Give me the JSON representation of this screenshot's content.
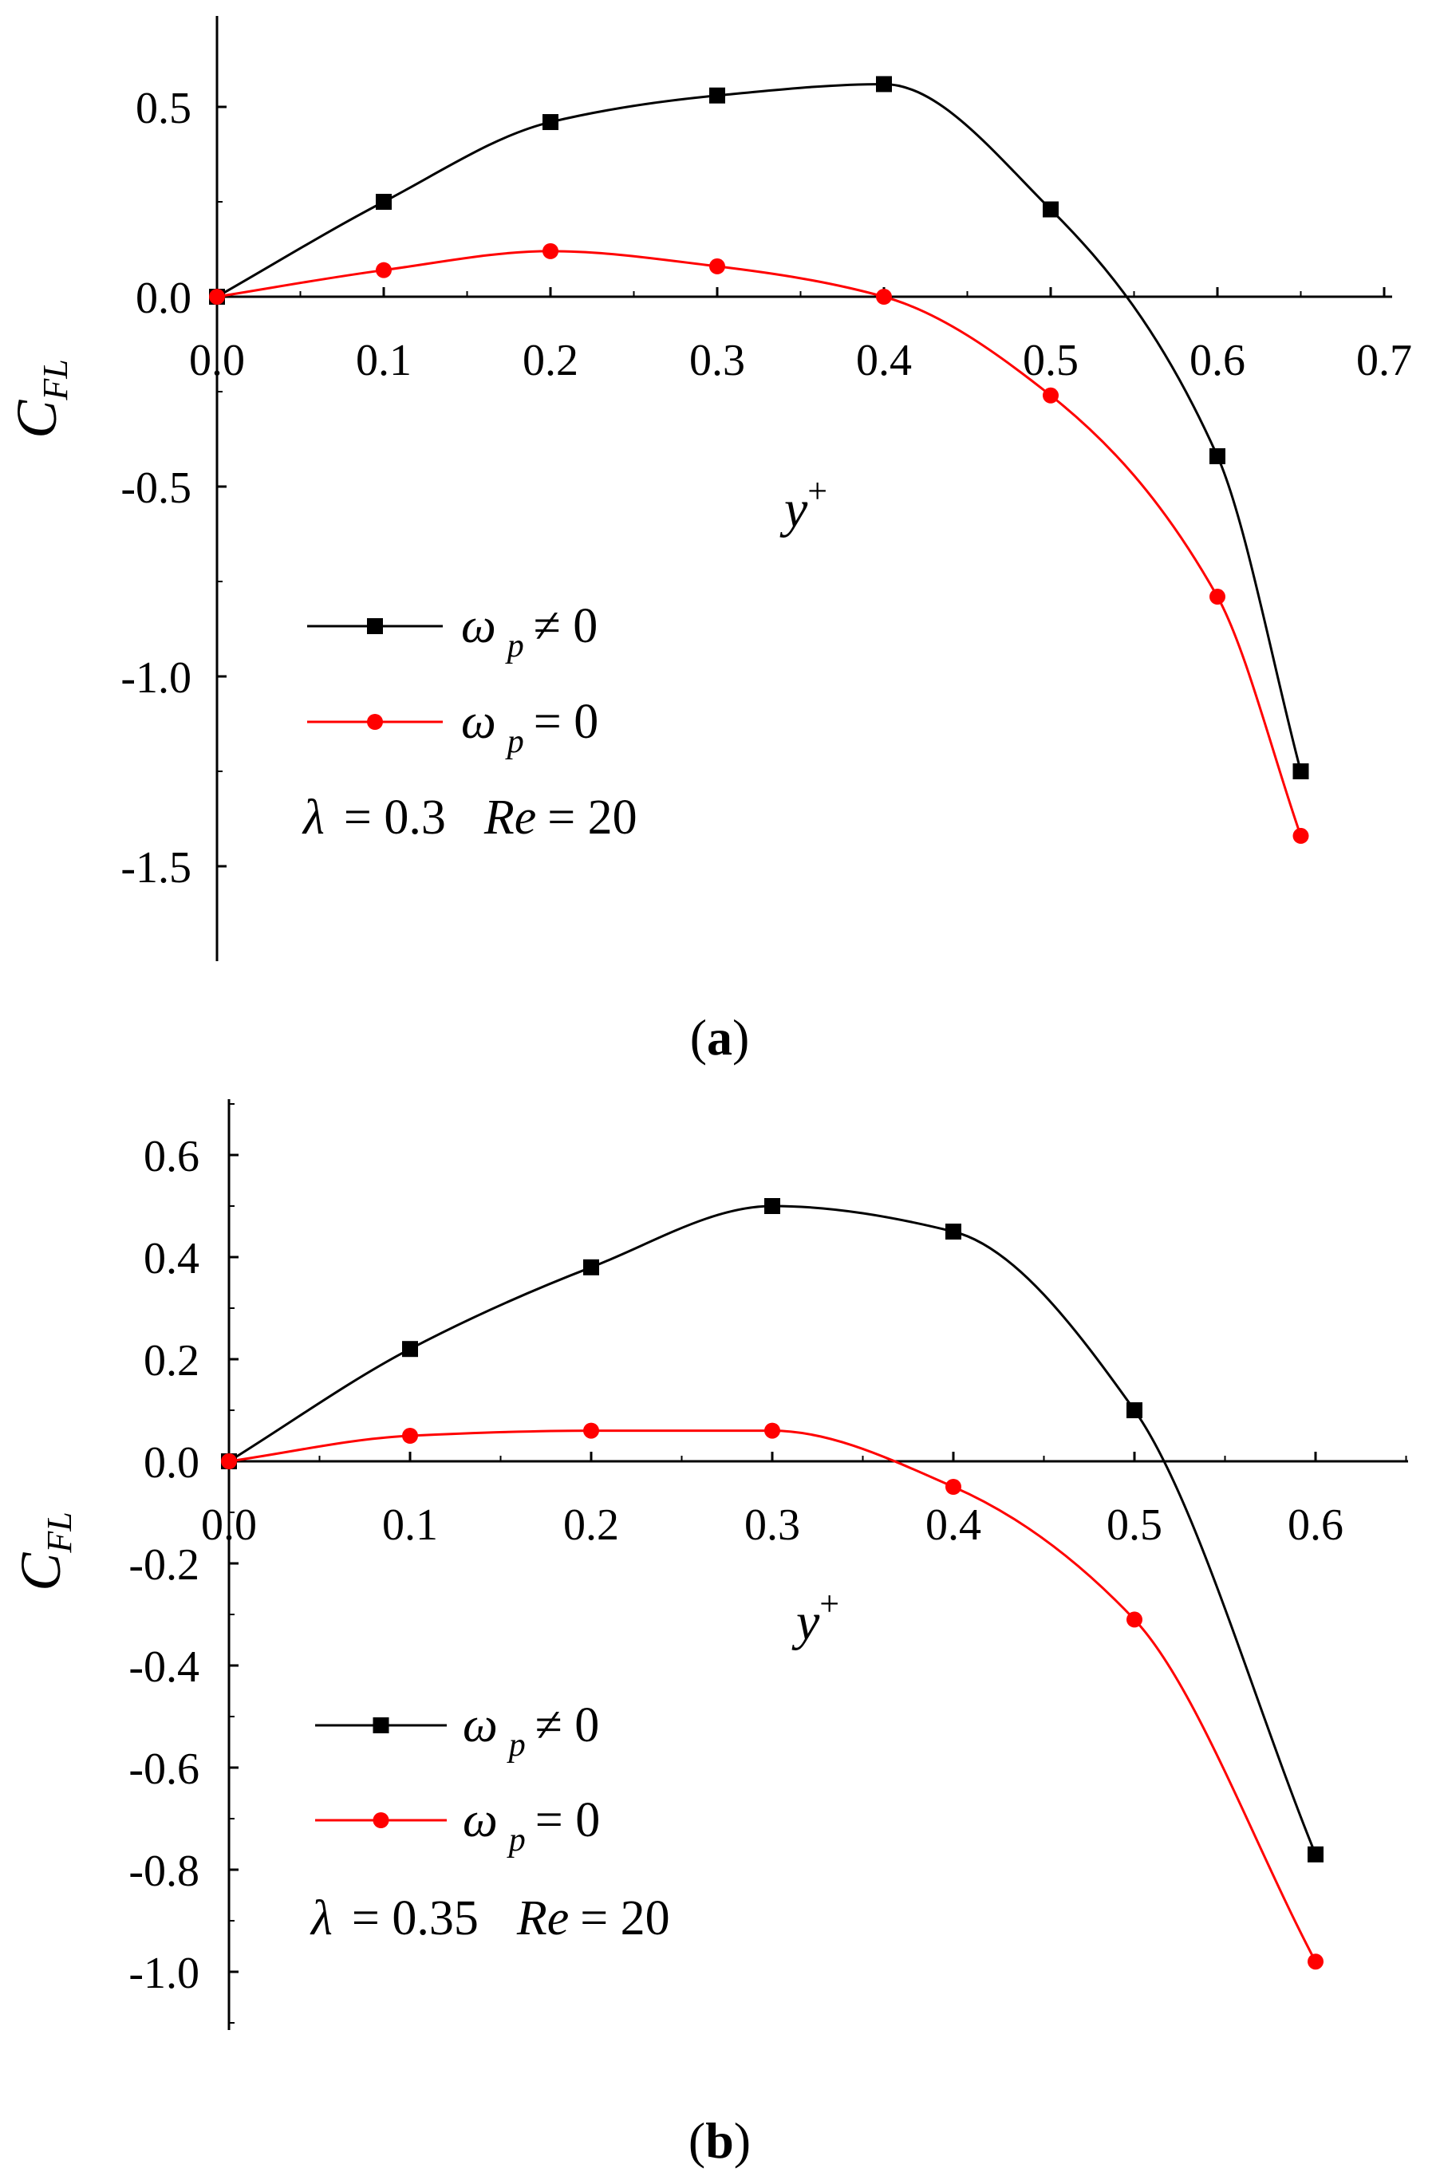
{
  "figure": {
    "panel_labels": [
      "a",
      "b"
    ]
  },
  "chart_data": [
    {
      "type": "line",
      "panel": "a",
      "xlabel": "y",
      "xlabel_superscript": "+",
      "ylabel": "C",
      "ylabel_subscript": "FL",
      "xlim": [
        0.0,
        0.7
      ],
      "ylim": [
        -1.75,
        0.75
      ],
      "x_ticks": [
        0.0,
        0.1,
        0.2,
        0.3,
        0.4,
        0.5,
        0.6,
        0.7
      ],
      "x_tick_labels": [
        "0.0",
        "0.1",
        "0.2",
        "0.3",
        "0.4",
        "0.5",
        "0.6",
        "0.7"
      ],
      "y_ticks": [
        0.5,
        0.0,
        -0.5,
        -1.0,
        -1.5
      ],
      "y_tick_labels": [
        "0.5",
        "0.0",
        "-0.5",
        "-1.0",
        "-1.5"
      ],
      "grid": false,
      "legend_position": "lower-left",
      "series": [
        {
          "name": "ωp ≠ 0",
          "legend_symbol": "ω",
          "legend_subscript": "p",
          "legend_rest": "≠   0",
          "color": "#000000",
          "marker": "square",
          "x": [
            0.0,
            0.1,
            0.2,
            0.3,
            0.4,
            0.5,
            0.6,
            0.65
          ],
          "y": [
            0.0,
            0.25,
            0.46,
            0.53,
            0.56,
            0.23,
            -0.42,
            -1.25
          ]
        },
        {
          "name": "ωp = 0",
          "legend_symbol": "ω",
          "legend_subscript": "p",
          "legend_rest": "= 0",
          "color": "#ff0000",
          "marker": "circle",
          "x": [
            0.0,
            0.1,
            0.2,
            0.3,
            0.4,
            0.5,
            0.6,
            0.65
          ],
          "y": [
            0.0,
            0.07,
            0.12,
            0.08,
            0.0,
            -0.26,
            -0.79,
            -1.42
          ]
        }
      ],
      "annotation": {
        "lambda_symbol": "λ",
        "lambda_value": "= 0.3",
        "re_symbol": "Re",
        "re_value": "= 20"
      }
    },
    {
      "type": "line",
      "panel": "b",
      "xlabel": "y",
      "xlabel_superscript": "+",
      "ylabel": "C",
      "ylabel_subscript": "FL",
      "xlim": [
        0.0,
        0.65
      ],
      "ylim": [
        -1.1,
        0.7
      ],
      "x_ticks": [
        0.0,
        0.1,
        0.2,
        0.3,
        0.4,
        0.5,
        0.6
      ],
      "x_tick_labels": [
        "0.0",
        "0.1",
        "0.2",
        "0.3",
        "0.4",
        "0.5",
        "0.6"
      ],
      "y_ticks": [
        0.6,
        0.4,
        0.2,
        0.0,
        -0.2,
        -0.4,
        -0.6,
        -0.8,
        -1.0
      ],
      "y_tick_labels": [
        "0.6",
        "0.4",
        "0.2",
        "0.0",
        "-0.2",
        "-0.4",
        "-0.6",
        "-0.8",
        "-1.0"
      ],
      "grid": false,
      "legend_position": "lower-left",
      "series": [
        {
          "name": "ωp ≠ 0",
          "legend_symbol": "ω",
          "legend_subscript": "p",
          "legend_rest": "≠   0",
          "color": "#000000",
          "marker": "square",
          "x": [
            0.0,
            0.1,
            0.2,
            0.3,
            0.4,
            0.5,
            0.6
          ],
          "y": [
            0.0,
            0.22,
            0.38,
            0.5,
            0.45,
            0.1,
            -0.77
          ]
        },
        {
          "name": "ωp = 0",
          "legend_symbol": "ω",
          "legend_subscript": "p",
          "legend_rest": "=  0",
          "color": "#ff0000",
          "marker": "circle",
          "x": [
            0.0,
            0.1,
            0.2,
            0.3,
            0.4,
            0.5,
            0.6
          ],
          "y": [
            0.0,
            0.05,
            0.06,
            0.06,
            -0.05,
            -0.31,
            -0.98
          ]
        }
      ],
      "annotation": {
        "lambda_symbol": "λ",
        "lambda_value": "= 0.35",
        "re_symbol": "Re",
        "re_value": "= 20"
      }
    }
  ]
}
